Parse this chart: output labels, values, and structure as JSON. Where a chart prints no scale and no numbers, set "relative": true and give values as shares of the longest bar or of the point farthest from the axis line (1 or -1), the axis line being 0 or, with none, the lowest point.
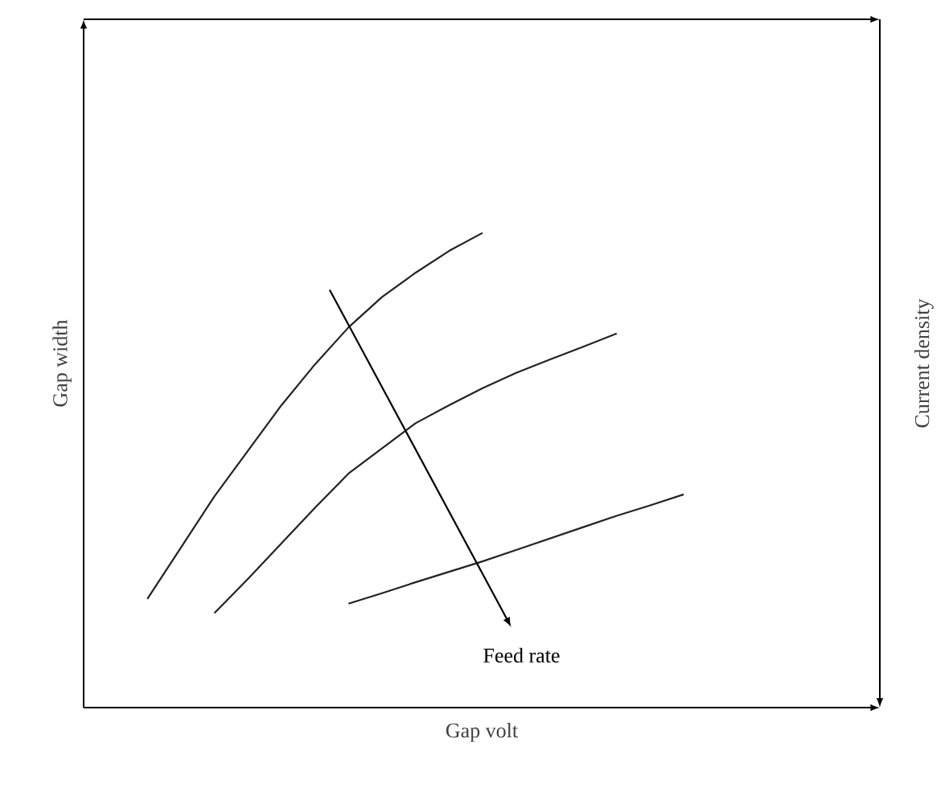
{
  "chart_data": {
    "type": "line",
    "relative": true,
    "xlabel": "Gap volt",
    "ylabel": "Gap width",
    "annotations": [
      "Feed rate",
      "Current density"
    ],
    "tick_labels": false,
    "marker": "none",
    "line_style": "solid",
    "categories": [
      null,
      null,
      null,
      null,
      null,
      null,
      null,
      null,
      null,
      null,
      null,
      null,
      null,
      null,
      null,
      null,
      null
    ],
    "series": [
      {
        "color": "#222222",
        "values": [
          0.229,
          0.337,
          0.445,
          0.541,
          0.637,
          0.723,
          0.801,
          0.865,
          0.916,
          0.962,
          1.0,
          null,
          null,
          null,
          null,
          null,
          null
        ]
      },
      {
        "color": "#222222",
        "values": [
          null,
          null,
          0.199,
          0.271,
          0.346,
          0.421,
          0.493,
          0.546,
          0.599,
          0.637,
          0.673,
          0.705,
          0.733,
          0.76,
          0.788,
          null,
          null
        ]
      },
      {
        "color": "#222222",
        "values": [
          null,
          null,
          null,
          null,
          null,
          null,
          0.219,
          0.241,
          0.264,
          0.286,
          0.308,
          0.332,
          0.356,
          0.38,
          0.404,
          0.426,
          0.449
        ]
      }
    ]
  }
}
